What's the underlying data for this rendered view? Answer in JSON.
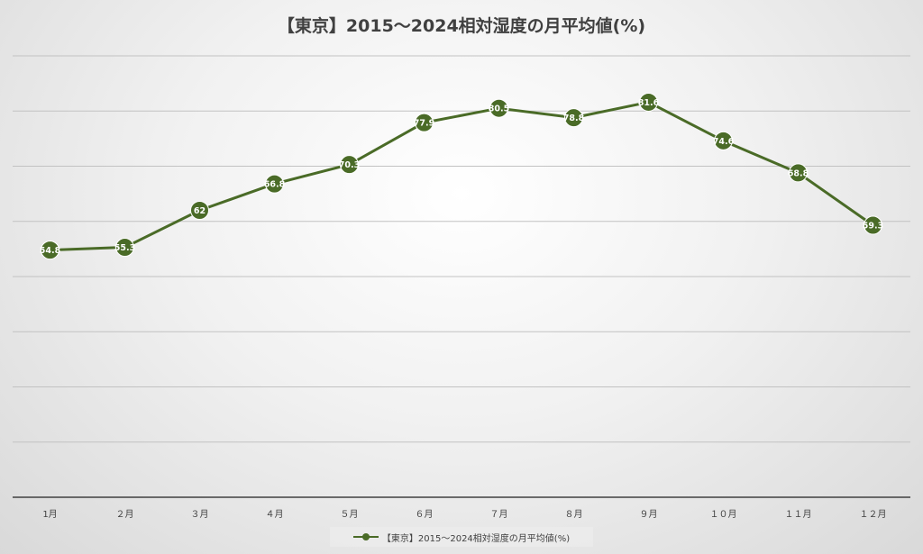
{
  "chart_data": {
    "type": "line",
    "title": "【東京】2015〜2024相対湿度の月平均値(%)",
    "categories": [
      "1月",
      "２月",
      "３月",
      "４月",
      "５月",
      "６月",
      "７月",
      "８月",
      "９月",
      "１０月",
      "１１月",
      "１２月"
    ],
    "series": [
      {
        "name": "【東京】2015〜2024相対湿度の月平均値(%)",
        "values": [
          54.8,
          55.3,
          62,
          66.8,
          70.3,
          77.9,
          80.5,
          78.8,
          81.6,
          74.6,
          68.8,
          59.3
        ],
        "color": "#4a6b27"
      }
    ],
    "ylim": [
      10,
      90
    ],
    "grid": true,
    "legend_position": "bottom"
  }
}
